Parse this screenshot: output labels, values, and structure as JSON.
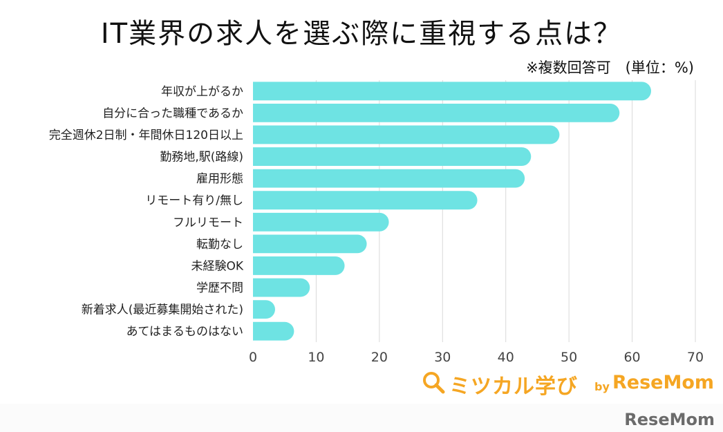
{
  "title": "IT業界の求人を選ぶ際に重視する点は？",
  "note": "※複数回答可　(単位：%)",
  "logo": {
    "text": "ミツカル学び",
    "by": "by",
    "brand": "ReseMom"
  },
  "watermark": "ReseMom",
  "colors": {
    "bar": "#6ee3e3",
    "grid": "#d9d9d9",
    "logo": "#f5a623"
  },
  "chart_data": {
    "type": "bar",
    "orientation": "horizontal",
    "categories": [
      "年収が上がるか",
      "自分に合った職種であるか",
      "完全週休2日制・年間休日120日以上",
      "勤務地,駅(路線)",
      "雇用形態",
      "リモート有り/無し",
      "フルリモート",
      "転勤なし",
      "未経験OK",
      "学歴不問",
      "新着求人(最近募集開始された)",
      "あてはまるものはない"
    ],
    "values": [
      63,
      58,
      48.5,
      44,
      43,
      35.5,
      21.5,
      18,
      14.5,
      9,
      3.5,
      6.5
    ],
    "xlim": [
      0,
      70
    ],
    "xticks": [
      0,
      10,
      20,
      30,
      40,
      50,
      60,
      70
    ],
    "grid": true
  }
}
